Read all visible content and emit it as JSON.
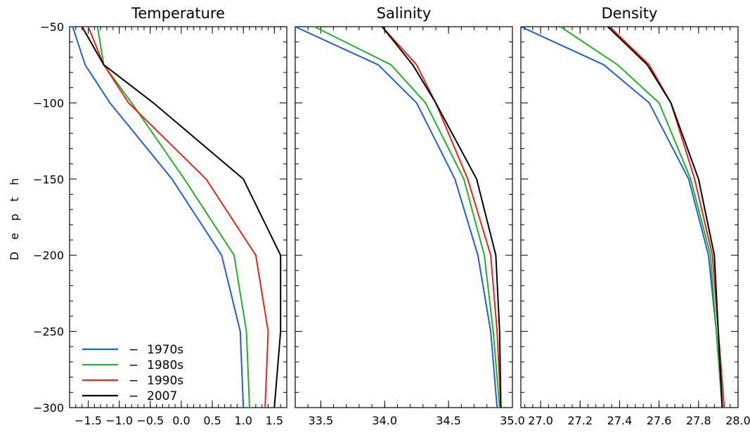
{
  "ylabel": "D e p t h",
  "y_ticks": [
    "-50",
    "-100",
    "-150",
    "-200",
    "-250",
    "-300"
  ],
  "colors": {
    "1970s": "#1f5fd1",
    "1980s": "#21b02a",
    "1990s": "#e4261c",
    "2007": "#000000"
  },
  "legend": [
    {
      "dash": "−",
      "label": "1970s",
      "color": "#1f5fd1"
    },
    {
      "dash": "−",
      "label": "1980s",
      "color": "#21b02a"
    },
    {
      "dash": "−",
      "label": "1990s",
      "color": "#e4261c"
    },
    {
      "dash": "−",
      "label": " 2007",
      "color": "#000000"
    }
  ],
  "chart_data": [
    {
      "type": "line",
      "title": "Temperature",
      "ylabel": "Depth",
      "xlim": [
        -1.8,
        1.7
      ],
      "ylim": [
        -300,
        -50
      ],
      "x_ticks": [
        {
          "v": -1.5,
          "t": "−1.5"
        },
        {
          "v": -1.0,
          "t": "−1.0"
        },
        {
          "v": -0.5,
          "t": "−0.5"
        },
        {
          "v": 0.0,
          "t": "0.0"
        },
        {
          "v": 0.5,
          "t": "0.5"
        },
        {
          "v": 1.0,
          "t": "1.0"
        },
        {
          "v": 1.5,
          "t": "1.5"
        }
      ],
      "depth": [
        -50,
        -75,
        -100,
        -150,
        -200,
        -250,
        -300
      ],
      "series": [
        {
          "name": "1970s",
          "values": [
            -1.75,
            -1.55,
            -1.15,
            -0.15,
            0.65,
            0.95,
            1.0
          ]
        },
        {
          "name": "1980s",
          "values": [
            -1.35,
            -1.25,
            -0.8,
            0.05,
            0.85,
            1.05,
            1.1
          ]
        },
        {
          "name": "1990s",
          "values": [
            -1.5,
            -1.25,
            -0.85,
            0.4,
            1.2,
            1.4,
            1.35
          ]
        },
        {
          "name": "2007",
          "values": [
            -1.6,
            -1.25,
            -0.45,
            1.0,
            1.6,
            1.6,
            1.5
          ]
        }
      ]
    },
    {
      "type": "line",
      "title": "Salinity",
      "xlim": [
        33.3,
        35.0
      ],
      "ylim": [
        -300,
        -50
      ],
      "x_ticks": [
        {
          "v": 33.5,
          "t": "33.5"
        },
        {
          "v": 34.0,
          "t": "34.0"
        },
        {
          "v": 34.5,
          "t": "34.5"
        },
        {
          "v": 35.0,
          "t": "35.0"
        }
      ],
      "depth": [
        -50,
        -75,
        -100,
        -150,
        -200,
        -250,
        -300
      ],
      "series": [
        {
          "name": "1970s",
          "values": [
            33.3,
            33.95,
            34.25,
            34.55,
            34.73,
            34.83,
            34.88
          ]
        },
        {
          "name": "1980s",
          "values": [
            33.45,
            34.05,
            34.32,
            34.62,
            34.78,
            34.85,
            34.9
          ]
        },
        {
          "name": "1990s",
          "values": [
            33.98,
            34.25,
            34.4,
            34.65,
            34.83,
            34.88,
            34.91
          ]
        },
        {
          "name": "2007",
          "values": [
            33.98,
            34.22,
            34.4,
            34.72,
            34.87,
            34.9,
            34.91
          ]
        }
      ]
    },
    {
      "type": "line",
      "title": "Density",
      "xlim": [
        26.9,
        28.0
      ],
      "ylim": [
        -300,
        -50
      ],
      "x_ticks": [
        {
          "v": 27.0,
          "t": "27.0"
        },
        {
          "v": 27.2,
          "t": "27.2"
        },
        {
          "v": 27.4,
          "t": "27.4"
        },
        {
          "v": 27.6,
          "t": "27.6"
        },
        {
          "v": 27.8,
          "t": "27.8"
        },
        {
          "v": 28.0,
          "t": "28.0"
        }
      ],
      "depth": [
        -50,
        -75,
        -100,
        -150,
        -200,
        -250,
        -300
      ],
      "series": [
        {
          "name": "1970s",
          "values": [
            26.9,
            27.32,
            27.55,
            27.75,
            27.85,
            27.89,
            27.92
          ]
        },
        {
          "name": "1980s",
          "values": [
            27.1,
            27.39,
            27.6,
            27.76,
            27.86,
            27.89,
            27.92
          ]
        },
        {
          "name": "1990s",
          "values": [
            27.35,
            27.55,
            27.66,
            27.78,
            27.87,
            27.9,
            27.93
          ]
        },
        {
          "name": "2007",
          "values": [
            27.34,
            27.54,
            27.66,
            27.8,
            27.88,
            27.9,
            27.92
          ]
        }
      ]
    }
  ]
}
